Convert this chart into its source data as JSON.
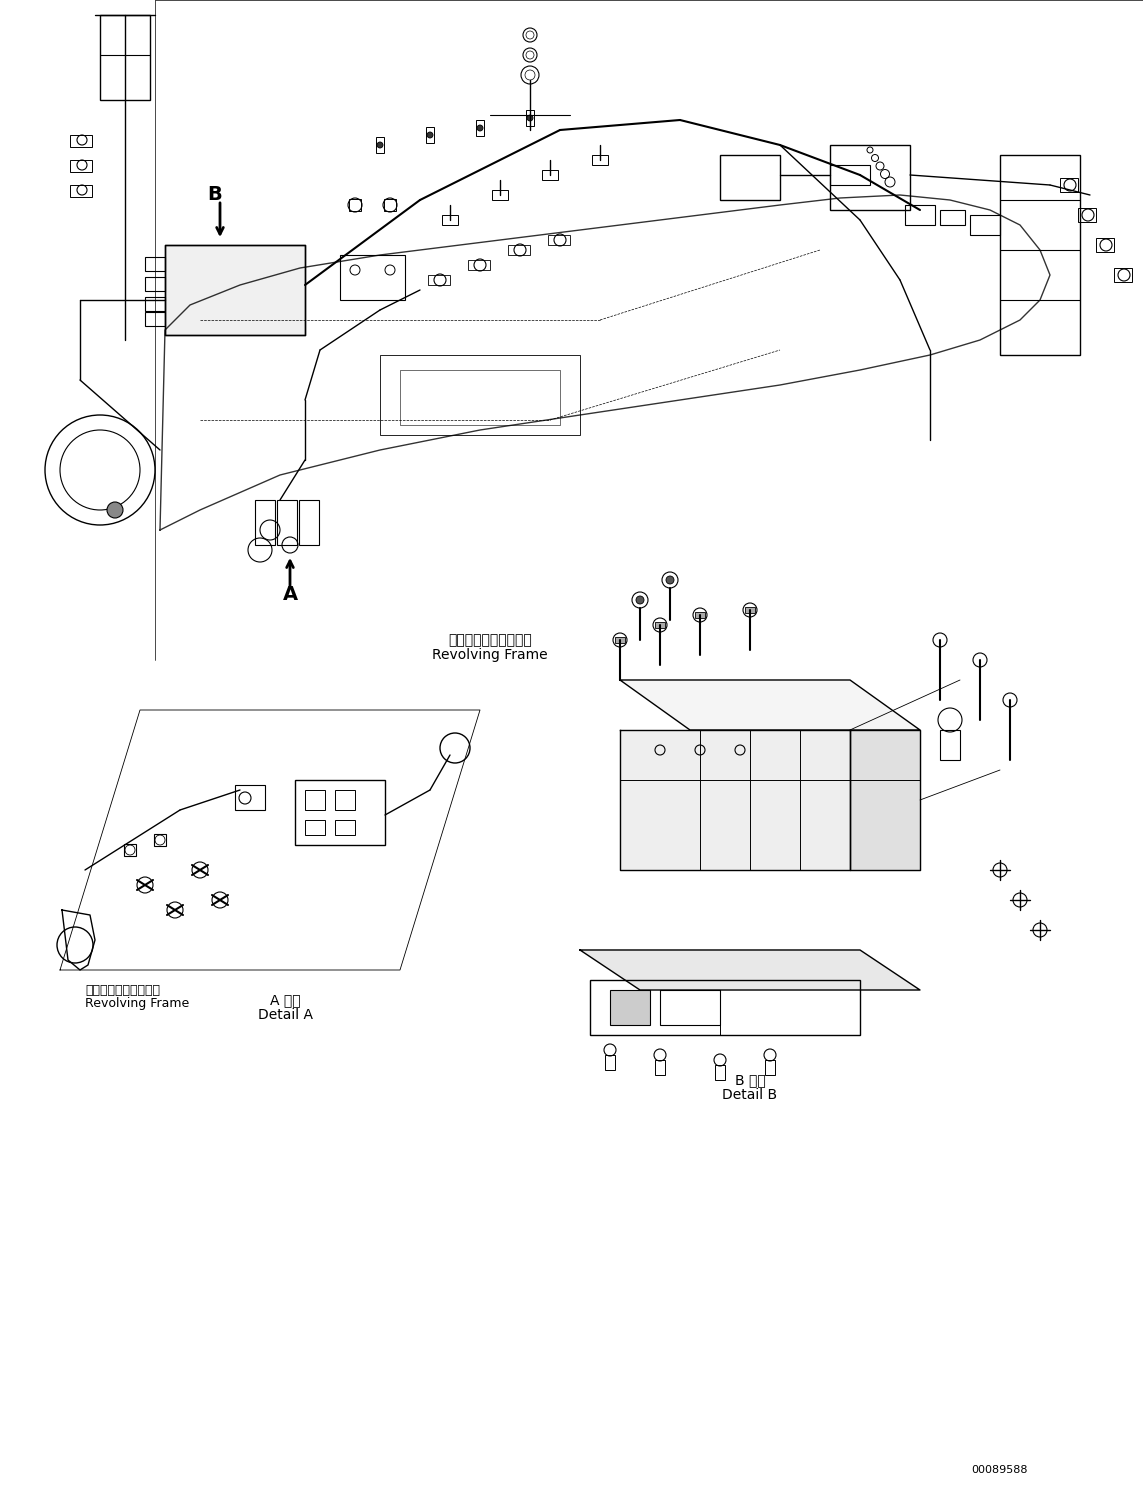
{
  "title": "",
  "background_color": "#ffffff",
  "part_number": "00089588",
  "labels": {
    "revolving_frame_jp_top": "レボルビングフレーム",
    "revolving_frame_en_top": "Revolving Frame",
    "revolving_frame_jp_bottom": "レボルビングフレーム",
    "revolving_frame_en_bottom": "Revolving Frame",
    "detail_a_jp": "A 詳細",
    "detail_a_en": "Detail A",
    "detail_b_jp": "B 詳細",
    "detail_b_en": "Detail B",
    "label_a": "A",
    "label_b": "B"
  },
  "fig_width": 11.43,
  "fig_height": 14.91,
  "dpi": 100
}
